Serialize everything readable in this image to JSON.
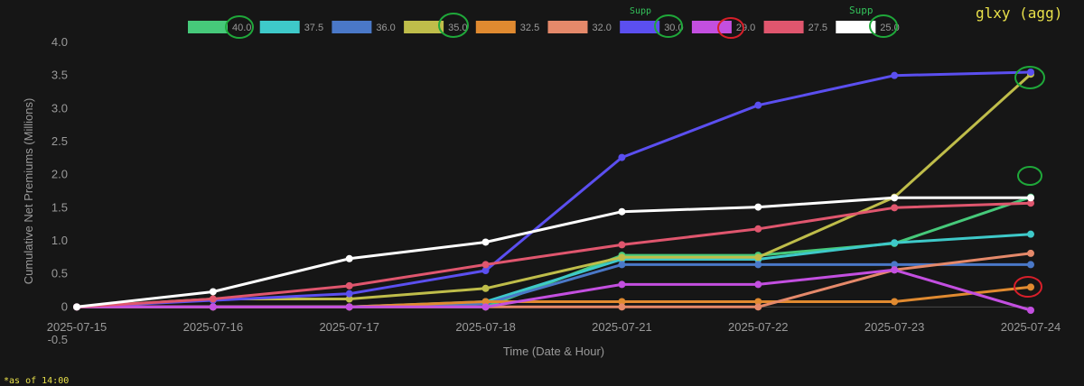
{
  "chart_data": {
    "type": "line",
    "title": "",
    "xlabel": "Time (Date & Hour)",
    "ylabel": "Cumulative Net Premiums (Millions)",
    "ylim": [
      -0.5,
      4.0
    ],
    "ytick_step": 0.5,
    "yticks": [
      "-0.5",
      "0",
      "0.5",
      "1.0",
      "1.5",
      "2.0",
      "2.5",
      "3.0",
      "3.5",
      "4.0"
    ],
    "grid": false,
    "legend_position": "top",
    "categories": [
      "2025-07-15",
      "2025-07-16",
      "2025-07-17",
      "2025-07-18",
      "2025-07-21",
      "2025-07-22",
      "2025-07-23",
      "2025-07-24"
    ],
    "series": [
      {
        "name": "40.0",
        "color": "#46c97a",
        "values": [
          0,
          0,
          0,
          0,
          0.78,
          0.78,
          0.96,
          1.66
        ]
      },
      {
        "name": "37.5",
        "color": "#3ec9c9",
        "values": [
          0,
          0,
          0,
          0.08,
          0.72,
          0.72,
          0.97,
          1.1
        ]
      },
      {
        "name": "36.0",
        "color": "#4a78c8",
        "values": [
          0,
          0,
          0,
          0.05,
          0.64,
          0.64,
          0.64,
          0.64
        ]
      },
      {
        "name": "35.0",
        "color": "#bfbd4a",
        "values": [
          0,
          0.12,
          0.12,
          0.28,
          0.75,
          0.75,
          1.66,
          3.52
        ]
      },
      {
        "name": "32.5",
        "color": "#e08a30",
        "values": [
          0,
          0,
          0,
          0.08,
          0.08,
          0.08,
          0.08,
          0.3
        ]
      },
      {
        "name": "32.0",
        "color": "#e5896a",
        "values": [
          0,
          0,
          0,
          0,
          0,
          0,
          0.56,
          0.81
        ]
      },
      {
        "name": "30.0",
        "color": "#5b4ff0",
        "values": [
          0,
          0.1,
          0.2,
          0.55,
          2.26,
          3.05,
          3.5,
          3.55
        ]
      },
      {
        "name": "29.0",
        "color": "#c34fe0",
        "values": [
          0,
          0,
          0,
          0,
          0.34,
          0.34,
          0.56,
          -0.05
        ]
      },
      {
        "name": "27.5",
        "color": "#e0566e",
        "values": [
          0,
          0.12,
          0.32,
          0.64,
          0.94,
          1.18,
          1.5,
          1.57
        ]
      },
      {
        "name": "25.0",
        "color": "#ffffff",
        "values": [
          0,
          0.23,
          0.73,
          0.98,
          1.44,
          1.51,
          1.65,
          1.65
        ]
      }
    ]
  },
  "annotations": {
    "top_right_note": "glxy (agg)",
    "bottom_left_note": "*as of 14:00",
    "legend_note_30": "Supp",
    "legend_note_25": "Supp",
    "circle_color_green": "#1fa83a",
    "circle_color_red": "#d81f2a"
  }
}
